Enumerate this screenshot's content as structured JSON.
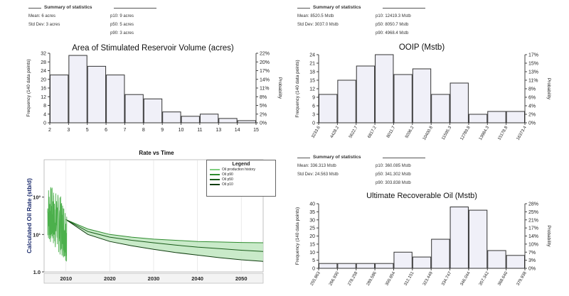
{
  "panels": {
    "asrv": {
      "stats": {
        "title": "Summary of statistics",
        "mean": "Mean: 6 acres",
        "std": "Std Dev: 3 acres",
        "p10": "p10: 9 acres",
        "p50": "p50: 5 acres",
        "p90": "p90: 3 acres"
      }
    },
    "ooip": {
      "stats": {
        "title": "Summary of statistics",
        "mean": "Mean: 8520.5 Mstb",
        "std": "Std Dev: 3037.0 Mstb",
        "p10": "p10: 12419.3 Mstb",
        "p50": "p50: 8050.7 Mstb",
        "p90": "p90: 4968.4 Mstb"
      }
    },
    "uro": {
      "stats": {
        "title": "Summary of statistics",
        "mean": "Mean: 336.313 Mstb",
        "std": "Std Dev: 24.563 Mstb",
        "p10": "p10: 360.085 Mstb",
        "p50": "p50: 341.302 Mstb",
        "p90": "p90: 303.838 Mstb"
      }
    }
  },
  "legend": {
    "title": "Legend",
    "items": [
      "Oil production history",
      "Oil p90",
      "Oil p50",
      "Oil p10"
    ],
    "colors": [
      "#7fcf7f",
      "#2e8b2e",
      "#1a5c1a",
      "#0f3d0f"
    ]
  },
  "chart_data": [
    {
      "id": "asrv",
      "type": "bar",
      "title": "Area of Stimulated Reservoir Volume (acres)",
      "ylabel": "Frequency (140 data points)",
      "y2label": "Probability",
      "tick_labels": [
        "2",
        "3",
        "5",
        "6",
        "7",
        "8",
        "9",
        "10",
        "11",
        "13",
        "14",
        "15"
      ],
      "values": [
        22,
        31,
        26,
        22,
        13,
        11,
        5,
        3,
        4,
        2,
        1
      ],
      "ylim": [
        0,
        32
      ],
      "yticks": [
        "0",
        "4",
        "8",
        "12",
        "16",
        "20",
        "24",
        "28",
        "32"
      ],
      "y2ticks": [
        "0%",
        "2%",
        "5%",
        "8%",
        "11%",
        "14%",
        "17%",
        "20%",
        "22%"
      ],
      "bar_color": "#f0f0f8"
    },
    {
      "id": "ooip",
      "type": "bar",
      "title": "OOIP (Mstb)",
      "ylabel": "Frequency (140 data points)",
      "y2label": "Probability",
      "tick_labels": [
        "3233.6",
        "4428.2",
        "5622.7",
        "6817.2",
        "8011.7",
        "9206.2",
        "10400.8",
        "11595.3",
        "12789.8",
        "13984.3",
        "15178.8",
        "16373.4"
      ],
      "values": [
        10,
        15,
        20,
        24,
        17,
        19,
        10,
        14,
        3,
        4,
        4
      ],
      "ylim": [
        0,
        24
      ],
      "yticks": [
        "0",
        "3",
        "6",
        "9",
        "12",
        "15",
        "18",
        "21",
        "24"
      ],
      "y2ticks": [
        "0%",
        "2%",
        "4%",
        "6%",
        "8%",
        "11%",
        "13%",
        "15%",
        "17%"
      ],
      "bar_color": "#f0f0f8"
    },
    {
      "id": "uro",
      "type": "bar",
      "title": "Ultimate Recoverable Oil (Mstb)",
      "ylabel": "Frequency (140 data points)",
      "y2label": "Probability",
      "tick_labels": [
        "255.863",
        "266.930",
        "278.258",
        "289.586",
        "300.854",
        "312.151",
        "323.449",
        "334.747",
        "346.044",
        "357.342",
        "368.640",
        "379.938"
      ],
      "values": [
        3,
        3,
        3,
        3,
        10,
        7,
        18,
        38,
        36,
        11,
        8
      ],
      "ylim": [
        0,
        40
      ],
      "yticks": [
        "0",
        "5",
        "10",
        "15",
        "20",
        "25",
        "30",
        "35",
        "40"
      ],
      "y2ticks": [
        "0%",
        "3%",
        "7%",
        "10%",
        "14%",
        "17%",
        "21%",
        "25%",
        "28%"
      ],
      "bar_color": "#f0f0f8"
    },
    {
      "id": "rate",
      "type": "line",
      "title": "Rate vs Time",
      "ylabel": "Calculated Oil Rate (stb/d)",
      "scale": "log",
      "ytick_labels": [
        "1.0",
        "10¹",
        "10²"
      ],
      "xtick_labels": [
        "2010",
        "2020",
        "2030",
        "2040",
        "2050"
      ],
      "x_range": [
        2005,
        2055
      ],
      "y_range_log10": [
        0,
        3
      ],
      "series": [
        {
          "name": "Oil p90",
          "x": [
            2010,
            2015,
            2020,
            2025,
            2030,
            2035,
            2040,
            2045,
            2050,
            2055
          ],
          "y": [
            25,
            14,
            10,
            8.5,
            7.5,
            7,
            6.5,
            6.3,
            6.1,
            6
          ]
        },
        {
          "name": "Oil p50",
          "x": [
            2010,
            2015,
            2020,
            2025,
            2030,
            2035,
            2040,
            2045,
            2050,
            2055
          ],
          "y": [
            25,
            12,
            8.5,
            7,
            6,
            5.2,
            4.6,
            4.2,
            3.8,
            3.5
          ]
        },
        {
          "name": "Oil p10",
          "x": [
            2010,
            2015,
            2020,
            2025,
            2030,
            2035,
            2040,
            2045,
            2050,
            2055
          ],
          "y": [
            25,
            10,
            6.5,
            5,
            4,
            3.3,
            2.8,
            2.4,
            2.1,
            1.9
          ]
        }
      ]
    }
  ]
}
